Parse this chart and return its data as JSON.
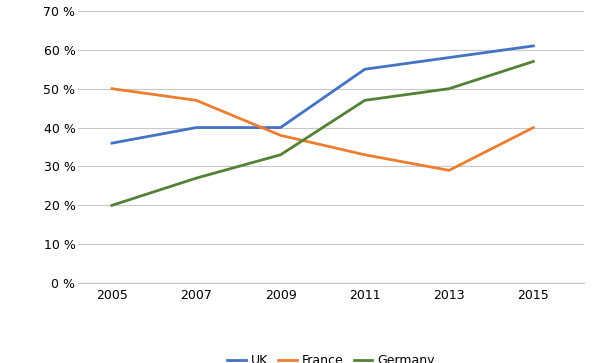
{
  "years": [
    2005,
    2007,
    2009,
    2011,
    2013,
    2015
  ],
  "UK": [
    0.36,
    0.4,
    0.4,
    0.55,
    0.58,
    0.61
  ],
  "France": [
    0.5,
    0.47,
    0.38,
    0.33,
    0.29,
    0.4
  ],
  "Germany": [
    0.2,
    0.27,
    0.33,
    0.47,
    0.5,
    0.57
  ],
  "colors": {
    "UK": "#4472C4",
    "France": "#ED7D31",
    "Germany": "#538135"
  },
  "ylim": [
    0,
    0.7
  ],
  "yticks": [
    0,
    0.1,
    0.2,
    0.3,
    0.4,
    0.5,
    0.6,
    0.7
  ],
  "legend_labels": [
    "UK",
    "France",
    "Germany"
  ],
  "background_color": "#FFFFFF",
  "grid_color": "#C8C8C8",
  "linewidth": 2.0
}
